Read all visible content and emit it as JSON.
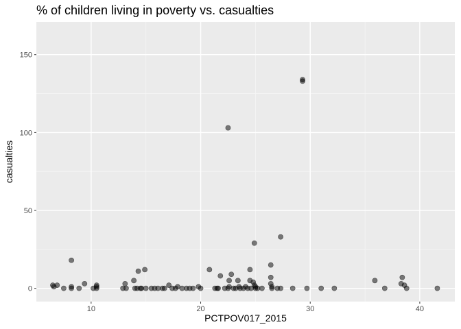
{
  "chart_data": {
    "type": "scatter",
    "title": "% of children living in poverty vs. casualties",
    "xlabel": "PCTPOV017_2015",
    "ylabel": "casualties",
    "xlim": [
      5.0,
      43.2
    ],
    "ylim": [
      -8.5,
      171
    ],
    "x_ticks": [
      10,
      20,
      30,
      40
    ],
    "y_ticks": [
      0,
      50,
      100,
      150
    ],
    "x_tick_labels": [
      "10",
      "20",
      "30",
      "40"
    ],
    "y_tick_labels": [
      "0",
      "50",
      "100",
      "150"
    ],
    "grid": true,
    "legend": "none",
    "colors": {
      "panel_background": "#ebebeb",
      "grid_major": "#ffffff",
      "grid_minor": "#f5f5f5",
      "point_fill": "rgba(0,0,0,0.5)",
      "tick_color": "#333333"
    },
    "points": [
      {
        "x": 6.5,
        "y": 2
      },
      {
        "x": 6.6,
        "y": 1
      },
      {
        "x": 6.9,
        "y": 2
      },
      {
        "x": 7.5,
        "y": 0
      },
      {
        "x": 8.2,
        "y": 18
      },
      {
        "x": 8.2,
        "y": 1
      },
      {
        "x": 8.2,
        "y": 0
      },
      {
        "x": 8.9,
        "y": 0
      },
      {
        "x": 9.4,
        "y": 3
      },
      {
        "x": 10.2,
        "y": 0
      },
      {
        "x": 10.5,
        "y": 2
      },
      {
        "x": 10.5,
        "y": 1
      },
      {
        "x": 10.5,
        "y": 0
      },
      {
        "x": 12.9,
        "y": 0
      },
      {
        "x": 13.1,
        "y": 3
      },
      {
        "x": 13.2,
        "y": 0
      },
      {
        "x": 13.9,
        "y": 5
      },
      {
        "x": 14.0,
        "y": 0
      },
      {
        "x": 14.2,
        "y": 0
      },
      {
        "x": 14.3,
        "y": 11
      },
      {
        "x": 14.5,
        "y": 0
      },
      {
        "x": 14.6,
        "y": 0
      },
      {
        "x": 14.9,
        "y": 12
      },
      {
        "x": 15.0,
        "y": 0
      },
      {
        "x": 15.5,
        "y": 0
      },
      {
        "x": 15.8,
        "y": 0
      },
      {
        "x": 16.1,
        "y": 0
      },
      {
        "x": 16.5,
        "y": 0
      },
      {
        "x": 16.7,
        "y": 0
      },
      {
        "x": 17.1,
        "y": 2
      },
      {
        "x": 17.4,
        "y": 0
      },
      {
        "x": 17.7,
        "y": 0
      },
      {
        "x": 17.9,
        "y": 1
      },
      {
        "x": 18.3,
        "y": 0
      },
      {
        "x": 18.7,
        "y": 0
      },
      {
        "x": 19.0,
        "y": 0
      },
      {
        "x": 19.3,
        "y": 0
      },
      {
        "x": 19.8,
        "y": 1
      },
      {
        "x": 20.0,
        "y": 0
      },
      {
        "x": 20.8,
        "y": 12
      },
      {
        "x": 21.3,
        "y": 0
      },
      {
        "x": 21.5,
        "y": 0
      },
      {
        "x": 21.6,
        "y": 0
      },
      {
        "x": 21.8,
        "y": 8
      },
      {
        "x": 22.2,
        "y": 0
      },
      {
        "x": 22.5,
        "y": 103
      },
      {
        "x": 22.5,
        "y": 0
      },
      {
        "x": 22.6,
        "y": 5
      },
      {
        "x": 22.6,
        "y": 1
      },
      {
        "x": 22.8,
        "y": 9
      },
      {
        "x": 23.0,
        "y": 0
      },
      {
        "x": 23.2,
        "y": 0
      },
      {
        "x": 23.4,
        "y": 5
      },
      {
        "x": 23.5,
        "y": 1
      },
      {
        "x": 23.6,
        "y": 0
      },
      {
        "x": 23.9,
        "y": 0
      },
      {
        "x": 24.1,
        "y": 1
      },
      {
        "x": 24.3,
        "y": 0
      },
      {
        "x": 24.5,
        "y": 12
      },
      {
        "x": 24.5,
        "y": 5
      },
      {
        "x": 24.6,
        "y": 0
      },
      {
        "x": 24.8,
        "y": 4
      },
      {
        "x": 24.9,
        "y": 29
      },
      {
        "x": 24.9,
        "y": 2
      },
      {
        "x": 25.0,
        "y": 1
      },
      {
        "x": 25.0,
        "y": 0
      },
      {
        "x": 25.2,
        "y": 0
      },
      {
        "x": 25.6,
        "y": 0
      },
      {
        "x": 26.4,
        "y": 15
      },
      {
        "x": 26.4,
        "y": 7
      },
      {
        "x": 26.4,
        "y": 3
      },
      {
        "x": 26.5,
        "y": 1
      },
      {
        "x": 26.5,
        "y": 0
      },
      {
        "x": 27.0,
        "y": 0
      },
      {
        "x": 27.3,
        "y": 33
      },
      {
        "x": 27.3,
        "y": 0
      },
      {
        "x": 28.4,
        "y": 0
      },
      {
        "x": 29.3,
        "y": 134
      },
      {
        "x": 29.3,
        "y": 133
      },
      {
        "x": 29.7,
        "y": 0
      },
      {
        "x": 31.0,
        "y": 0
      },
      {
        "x": 32.2,
        "y": 0
      },
      {
        "x": 35.9,
        "y": 5
      },
      {
        "x": 36.8,
        "y": 0
      },
      {
        "x": 38.3,
        "y": 3
      },
      {
        "x": 38.4,
        "y": 7
      },
      {
        "x": 38.6,
        "y": 2
      },
      {
        "x": 38.8,
        "y": 0
      },
      {
        "x": 41.6,
        "y": 0
      }
    ]
  }
}
